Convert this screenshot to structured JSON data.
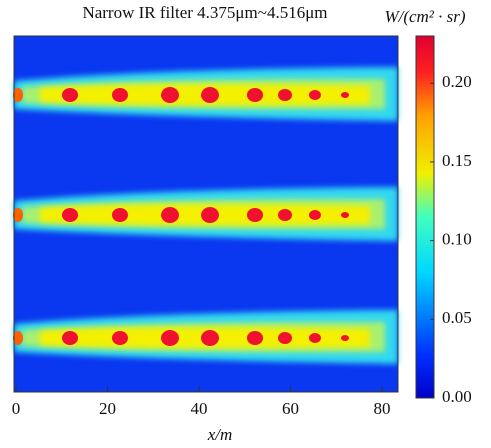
{
  "chart_data": {
    "type": "heatmap",
    "title": "Narrow IR filter 4.375μm~4.516μm",
    "x_label": "x/m",
    "xlim": [
      0,
      84
    ],
    "xticks": [
      0,
      20,
      40,
      60,
      80
    ],
    "colorbar_label": "W/(cm² · sr)",
    "colormap": "jet",
    "clim": [
      0,
      0.23
    ],
    "colorbar_ticks": [
      {
        "value": 0,
        "label": "0.00"
      },
      {
        "value": 0.05,
        "label": "0.05"
      },
      {
        "value": 0.1,
        "label": "0.10"
      },
      {
        "value": 0.15,
        "label": "0.15"
      },
      {
        "value": 0.2,
        "label": "0.20"
      }
    ]
  }
}
